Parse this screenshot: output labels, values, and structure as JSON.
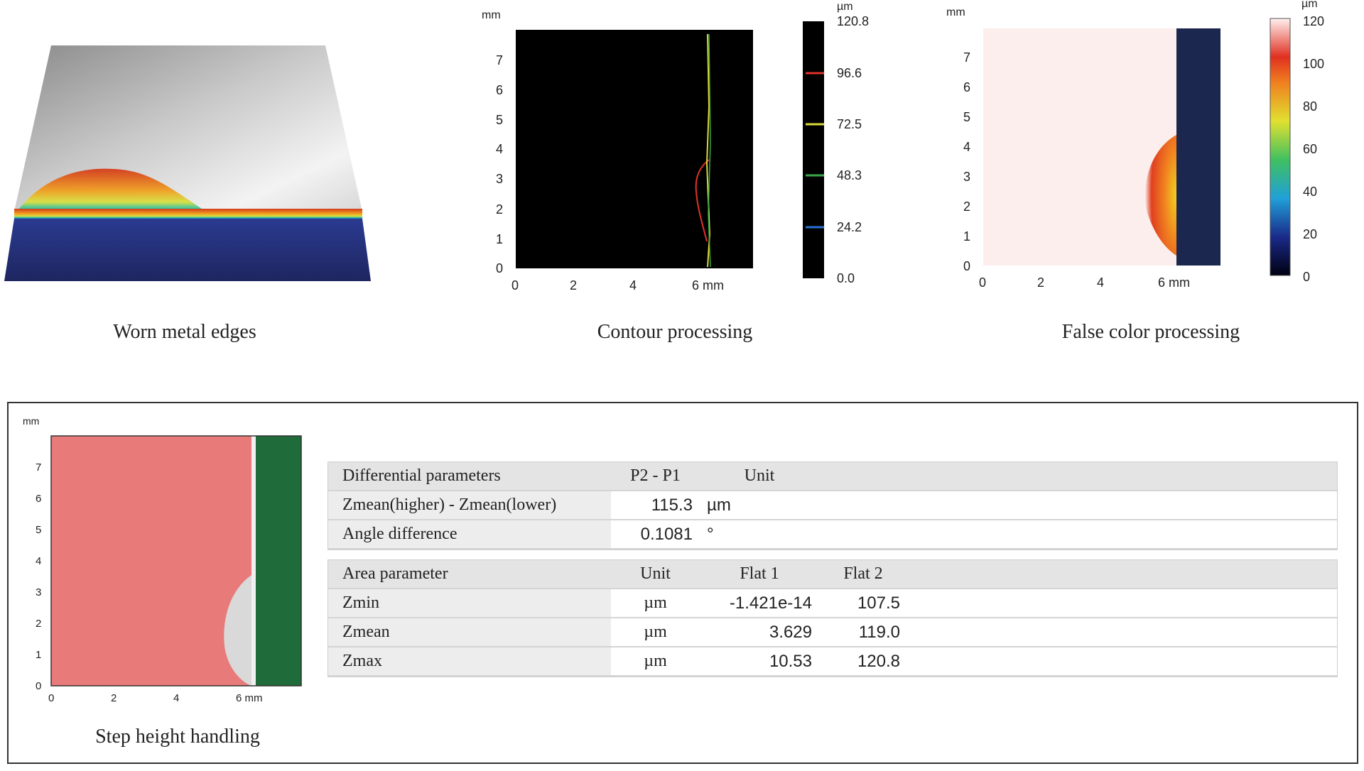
{
  "captions": {
    "worn": "Worn metal edges",
    "contour": "Contour processing",
    "false_color": "False color processing",
    "step": "Step height handling"
  },
  "axes": {
    "unit_mm": "mm",
    "unit_um": "µm",
    "unit_um_alt": "µm",
    "y_ticks": [
      "0",
      "1",
      "2",
      "3",
      "4",
      "5",
      "6",
      "7"
    ],
    "x_ticks": [
      "0",
      "2",
      "4",
      "6 mm"
    ],
    "step_x_ticks": [
      "0",
      "2",
      "4",
      "6 mm"
    ]
  },
  "contour_scale": {
    "labels": [
      "120.8",
      "96.6",
      "72.5",
      "48.3",
      "24.2",
      "0.0"
    ],
    "line_colors": [
      "#e2332a",
      "#d9d93a",
      "#3aa84a",
      "#2a6fd6"
    ]
  },
  "false_color_scale": {
    "labels": [
      "120",
      "100",
      "80",
      "60",
      "40",
      "20",
      "0"
    ]
  },
  "chart_data": [
    {
      "type": "heatmap",
      "name": "contour",
      "xlim": [
        0,
        8
      ],
      "ylim": [
        0,
        8
      ],
      "colorbar_range": [
        0.0,
        120.8
      ]
    },
    {
      "type": "heatmap",
      "name": "false_color",
      "xlim": [
        0,
        8
      ],
      "ylim": [
        0,
        8
      ],
      "colorbar_range": [
        0,
        120
      ]
    },
    {
      "type": "table",
      "name": "step_height",
      "xlim": [
        0,
        8
      ],
      "ylim": [
        0,
        8
      ]
    }
  ],
  "differential": {
    "header": [
      "Differential parameters",
      "P2 - P1",
      "Unit"
    ],
    "rows": [
      {
        "label": "Zmean(higher) - Zmean(lower)",
        "value": "115.3",
        "unit": "µm"
      },
      {
        "label": "Angle difference",
        "value": "0.1081",
        "unit": "°"
      }
    ]
  },
  "area": {
    "header": [
      "Area parameter",
      "Unit",
      "Flat 1",
      "Flat 2"
    ],
    "flat_colors": [
      "#4caf3a",
      "#e02a2a"
    ],
    "rows": [
      {
        "label": "Zmin",
        "unit": "µm",
        "flat1": "-1.421e-14",
        "flat2": "107.5"
      },
      {
        "label": "Zmean",
        "unit": "µm",
        "flat1": "3.629",
        "flat2": "119.0"
      },
      {
        "label": "Zmax",
        "unit": "µm",
        "flat1": "10.53",
        "flat2": "120.8"
      }
    ]
  }
}
